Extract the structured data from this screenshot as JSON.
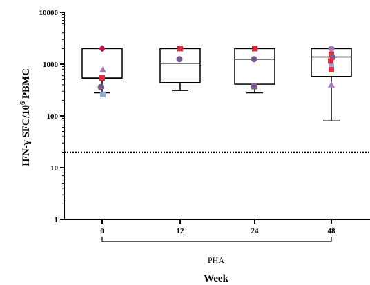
{
  "chart_data": {
    "type": "box",
    "y_scale": "log",
    "ylim": [
      1,
      10000
    ],
    "y_ticks": [
      "1",
      "10",
      "100",
      "1000",
      "10000"
    ],
    "ylabel_main": "IFN-γ SFC/10",
    "ylabel_sup": "6",
    "ylabel_end": " PBMC",
    "xlabel": "Week",
    "categories": [
      "0",
      "12",
      "24",
      "48"
    ],
    "group_label": "PHA",
    "threshold_line": {
      "y": 20,
      "style": "dotted"
    },
    "boxes": [
      {
        "category": "0",
        "whisker_low": 280,
        "q1": 540,
        "median": 540,
        "q3": 2000,
        "whisker_high": 2000
      },
      {
        "category": "12",
        "whisker_low": 310,
        "q1": 440,
        "median": 1040,
        "q3": 2000,
        "whisker_high": 2000
      },
      {
        "category": "24",
        "whisker_low": 280,
        "q1": 410,
        "median": 1250,
        "q3": 2000,
        "whisker_high": 2000
      },
      {
        "category": "48",
        "whisker_low": 80,
        "q1": 580,
        "median": 1380,
        "q3": 2000,
        "whisker_high": 2000
      }
    ],
    "points": [
      {
        "category": "0",
        "y": 2000,
        "dx": 0,
        "shape": "diamond",
        "color": "#c0174a"
      },
      {
        "category": "0",
        "y": 780,
        "dx": 1,
        "shape": "triangle",
        "color": "#a77bb5"
      },
      {
        "category": "0",
        "y": 540,
        "dx": 0,
        "shape": "square",
        "color": "#e02a3f"
      },
      {
        "category": "0",
        "y": 360,
        "dx": -2,
        "shape": "circle",
        "color": "#7a5a8f"
      },
      {
        "category": "0",
        "y": 260,
        "dx": 1,
        "shape": "square",
        "color": "#8ea8d8"
      },
      {
        "category": "12",
        "y": 2000,
        "dx": 0,
        "shape": "square",
        "color": "#e02a3f"
      },
      {
        "category": "12",
        "y": 1250,
        "dx": -1,
        "shape": "circle",
        "color": "#7a5a8f"
      },
      {
        "category": "24",
        "y": 2000,
        "dx": 0,
        "shape": "square",
        "color": "#e02a3f"
      },
      {
        "category": "24",
        "y": 1250,
        "dx": -1,
        "shape": "circle",
        "color": "#7a5a8f"
      },
      {
        "category": "24",
        "y": 370,
        "dx": -1,
        "shape": "square",
        "color": "#7a5a8f"
      },
      {
        "category": "48",
        "y": 2000,
        "dx": 0,
        "shape": "circle",
        "color": "#a77bb5"
      },
      {
        "category": "48",
        "y": 1550,
        "dx": 0,
        "shape": "square",
        "color": "#e02a3f"
      },
      {
        "category": "48",
        "y": 1350,
        "dx": 2,
        "shape": "circle",
        "color": "#7a5a8f"
      },
      {
        "category": "48",
        "y": 1150,
        "dx": -1,
        "shape": "square",
        "color": "#e02a3f"
      },
      {
        "category": "48",
        "y": 900,
        "dx": 0,
        "shape": "square",
        "color": "#8ea8d8"
      },
      {
        "category": "48",
        "y": 780,
        "dx": 0,
        "shape": "square",
        "color": "#e02a3f"
      },
      {
        "category": "48",
        "y": 400,
        "dx": 0,
        "shape": "triangle",
        "color": "#a77bb5"
      }
    ]
  }
}
